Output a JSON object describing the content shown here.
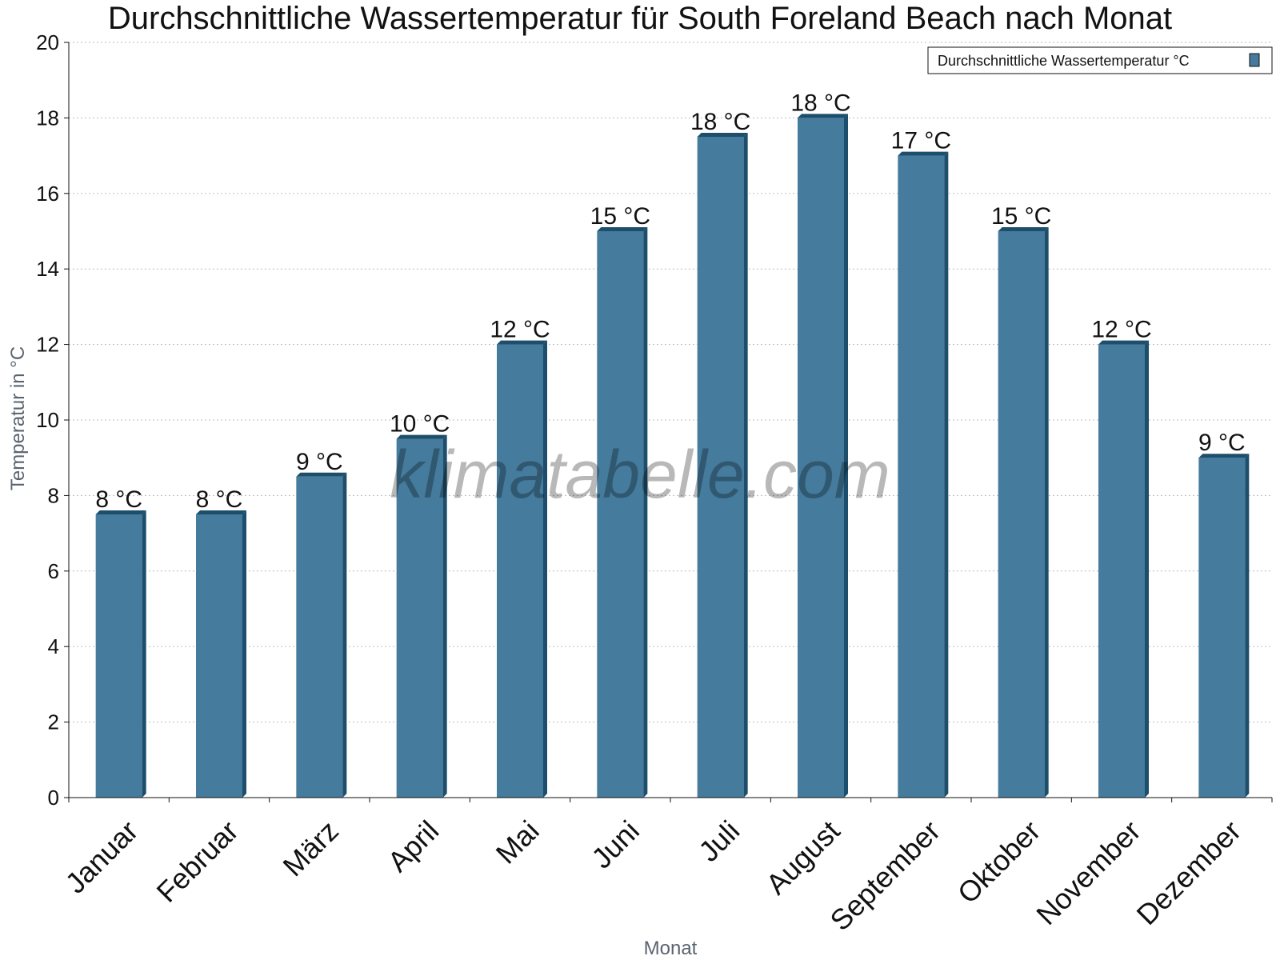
{
  "chart_data": {
    "type": "bar",
    "title": "Durchschnittliche Wassertemperatur für South Foreland Beach nach Monat",
    "xlabel": "Monat",
    "ylabel": "Temperatur in °C",
    "categories": [
      "Januar",
      "Februar",
      "März",
      "April",
      "Mai",
      "Juni",
      "Juli",
      "August",
      "September",
      "Oktober",
      "November",
      "Dezember"
    ],
    "series": [
      {
        "name": "Durchschnittliche Wassertemperatur °C",
        "values": [
          7.5,
          7.5,
          8.5,
          9.5,
          12,
          15,
          17.5,
          18,
          17,
          15,
          12,
          9
        ],
        "labels": [
          "8 °C",
          "8 °C",
          "9 °C",
          "10 °C",
          "12 °C",
          "15 °C",
          "18 °C",
          "18 °C",
          "17 °C",
          "15 °C",
          "12 °C",
          "9 °C"
        ],
        "color": "#457b9d",
        "edge_color": "#1d4e6b"
      }
    ],
    "ylim": [
      0,
      20
    ],
    "yticks": [
      0,
      2,
      4,
      6,
      8,
      10,
      12,
      14,
      16,
      18,
      20
    ],
    "grid": true,
    "legend_position": "top-right",
    "watermark": "klimatabelle.com"
  }
}
